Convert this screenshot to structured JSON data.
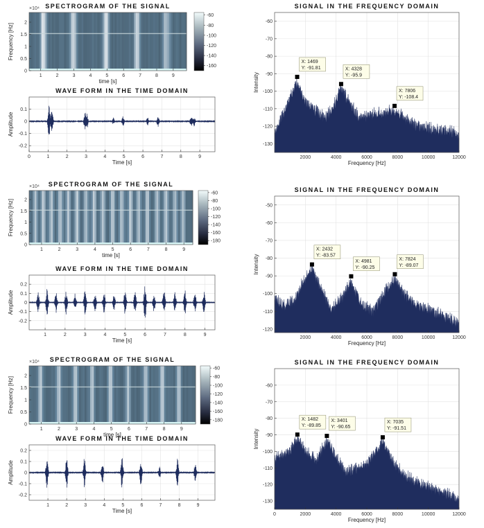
{
  "colors": {
    "fill": "#1f2d5e",
    "axis": "#333333",
    "grid": "#e2e2e2",
    "marker": "#000000",
    "tipBg": "#fdfde8"
  },
  "chart_data": [
    {
      "type": "heatmap",
      "title": "SPECTROGRAM OF THE SIGNAL",
      "xlabel": "time [s]",
      "ylabel": "Frequency [Hz]",
      "exponent": "×10⁴",
      "xlim": [
        0.3,
        9.8
      ],
      "xticks": [
        1,
        2,
        3,
        4,
        5,
        6,
        7,
        8,
        9
      ],
      "ylim": [
        0,
        2.4
      ],
      "yticks": [
        0,
        0.5,
        1,
        1.5,
        2
      ],
      "colorbar": {
        "ticks": [
          -60,
          -80,
          -100,
          -120,
          -140,
          -160
        ],
        "range": [
          -170,
          -55
        ]
      },
      "bursts": [
        1.1,
        1.25,
        2.9,
        3.05,
        4.9,
        5.0,
        6.75,
        6.9,
        8.5,
        8.7
      ],
      "burst_strength": [
        0.9,
        0.6,
        0.8,
        0.6,
        0.9,
        0.6,
        0.8,
        0.6,
        0.7,
        0.5
      ]
    },
    {
      "type": "line",
      "title": "WAVE FORM IN THE TIME DOMAIN",
      "xlabel": "Time [s]",
      "ylabel": "Amplitude",
      "xlim": [
        0,
        9.8
      ],
      "xticks": [
        0,
        1,
        2,
        3,
        4,
        5,
        6,
        7,
        8,
        9
      ],
      "ylim": [
        -0.25,
        0.2
      ],
      "yticks": [
        -0.2,
        -0.1,
        0,
        0.1
      ],
      "bursts": [
        1.05,
        1.2,
        2.95,
        3.05,
        4.45,
        4.95,
        6.25,
        6.8,
        8.55,
        8.7
      ],
      "burst_amp": [
        0.15,
        0.1,
        0.08,
        0.06,
        0.03,
        0.04,
        0.03,
        0.05,
        0.05,
        0.04
      ]
    },
    {
      "type": "area",
      "title": "SIGNAL IN THE FREQUENCY DOMAIN",
      "xlabel": "Frequency [Hz]",
      "ylabel": "Intensity",
      "xlim": [
        0,
        12000
      ],
      "xticks": [
        2000,
        4000,
        6000,
        8000,
        10000,
        12000
      ],
      "ylim": [
        -135,
        -55
      ],
      "yticks": [
        -60,
        -70,
        -80,
        -90,
        -100,
        -110,
        -120,
        -130
      ],
      "envelope": {
        "x": [
          0,
          400,
          900,
          1469,
          1900,
          2600,
          3300,
          3800,
          4328,
          4900,
          5600,
          6200,
          7000,
          7806,
          8600,
          9400,
          10200,
          11000,
          12000
        ],
        "y": [
          -122,
          -113,
          -104,
          -91.81,
          -102,
          -108,
          -113,
          -107,
          -95.9,
          -105,
          -113,
          -111,
          -110,
          -108.4,
          -114,
          -118,
          -119,
          -120,
          -122
        ]
      },
      "annotations": [
        {
          "x": 1469,
          "y": -91.81,
          "xtext": "X: 1469",
          "ytext": "Y: -91.81"
        },
        {
          "x": 4328,
          "y": -95.9,
          "xtext": "X: 4328",
          "ytext": "Y: -95.9"
        },
        {
          "x": 7806,
          "y": -108.4,
          "xtext": "X: 7806",
          "ytext": "Y: -108.4"
        }
      ]
    },
    {
      "type": "heatmap",
      "title": "SPECTROGRAM OF THE SIGNAL",
      "xlabel": "time [s]",
      "ylabel": "Frequency [Hz]",
      "exponent": "×10⁴",
      "xlim": [
        0.3,
        9.5
      ],
      "xticks": [
        1,
        2,
        3,
        4,
        5,
        6,
        7,
        8,
        9
      ],
      "ylim": [
        0,
        2.4
      ],
      "yticks": [
        0,
        0.5,
        1,
        1.5,
        2
      ],
      "colorbar": {
        "ticks": [
          -60,
          -80,
          -100,
          -120,
          -140,
          -160,
          -180
        ],
        "range": [
          -190,
          -55
        ]
      },
      "bursts": [
        0.65,
        1.1,
        1.55,
        2.05,
        2.5,
        3.0,
        3.5,
        3.95,
        4.45,
        5.0,
        5.5,
        6.0,
        6.45,
        6.95,
        7.5,
        8.0,
        8.5,
        8.95
      ],
      "burst_strength": [
        0.8,
        0.9,
        0.8,
        0.85,
        0.8,
        0.9,
        0.8,
        0.85,
        0.8,
        0.9,
        0.8,
        0.85,
        0.8,
        0.9,
        0.8,
        0.85,
        0.8,
        0.8
      ]
    },
    {
      "type": "line",
      "title": "WAVE FORM IN THE TIME DOMAIN",
      "xlabel": "Time [s]",
      "ylabel": "Amplitude",
      "xlim": [
        0.2,
        9.5
      ],
      "xticks": [
        1,
        2,
        3,
        4,
        5,
        6,
        7,
        8,
        9
      ],
      "ylim": [
        -0.3,
        0.3
      ],
      "yticks": [
        -0.2,
        -0.1,
        0,
        0.1,
        0.2
      ],
      "bursts": [
        0.65,
        1.1,
        1.55,
        2.05,
        2.5,
        3.0,
        3.5,
        3.95,
        4.45,
        5.0,
        5.5,
        6.0,
        6.45,
        6.95,
        7.5,
        8.0,
        8.5,
        8.95
      ],
      "burst_amp": [
        0.12,
        0.15,
        0.11,
        0.13,
        0.1,
        0.14,
        0.1,
        0.12,
        0.09,
        0.14,
        0.12,
        0.2,
        0.1,
        0.13,
        0.12,
        0.14,
        0.11,
        0.12
      ]
    },
    {
      "type": "area",
      "title": "SIGNAL IN THE FREQUENCY DOMAIN",
      "xlabel": "Frequency [Hz]",
      "ylabel": "Intensity",
      "xlim": [
        0,
        12000
      ],
      "xticks": [
        2000,
        4000,
        6000,
        8000,
        10000,
        12000
      ],
      "ylim": [
        -122,
        -45
      ],
      "yticks": [
        -50,
        -60,
        -70,
        -80,
        -90,
        -100,
        -110,
        -120
      ],
      "envelope": {
        "x": [
          0,
          600,
          1300,
          1900,
          2432,
          3000,
          3700,
          4400,
          4981,
          5600,
          6400,
          7200,
          7824,
          8500,
          9300,
          10200,
          11000,
          12000
        ],
        "y": [
          -100,
          -104,
          -101,
          -90,
          -83.57,
          -95,
          -106,
          -100,
          -90.25,
          -103,
          -108,
          -96,
          -89.07,
          -99,
          -104,
          -107,
          -110,
          -115
        ]
      },
      "annotations": [
        {
          "x": 2432,
          "y": -83.57,
          "xtext": "X: 2432",
          "ytext": "Y: -83.57"
        },
        {
          "x": 4981,
          "y": -90.25,
          "xtext": "X: 4981",
          "ytext": "Y: -90.25"
        },
        {
          "x": 7824,
          "y": -89.07,
          "xtext": "X: 7824",
          "ytext": "Y: -89.07"
        }
      ]
    },
    {
      "type": "heatmap",
      "title": "SPECTROGRAM OF THE SIGNAL",
      "xlabel": "time [s]",
      "ylabel": "Frequency [Hz]",
      "exponent": "×10⁴",
      "xlim": [
        0.3,
        9.8
      ],
      "xticks": [
        1,
        2,
        3,
        4,
        5,
        6,
        7,
        8,
        9
      ],
      "ylim": [
        0,
        2.4
      ],
      "yticks": [
        0,
        0.5,
        1,
        1.5,
        2
      ],
      "colorbar": {
        "ticks": [
          -60,
          -80,
          -100,
          -120,
          -140,
          -160,
          -180
        ],
        "range": [
          -190,
          -55
        ]
      },
      "bursts": [
        0.95,
        2.0,
        2.95,
        3.9,
        4.95,
        5.95,
        6.95,
        7.9,
        8.85
      ],
      "burst_strength": [
        0.85,
        0.9,
        0.85,
        0.85,
        0.9,
        0.85,
        0.85,
        0.9,
        0.85
      ]
    },
    {
      "type": "line",
      "title": "WAVE FORM IN THE TIME DOMAIN",
      "xlabel": "Time [s]",
      "ylabel": "Amplitude",
      "xlim": [
        0,
        9.9
      ],
      "xticks": [
        1,
        2,
        3,
        4,
        5,
        6,
        7,
        8,
        9
      ],
      "ylim": [
        -0.25,
        0.25
      ],
      "yticks": [
        -0.2,
        -0.1,
        0,
        0.1,
        0.2
      ],
      "bursts": [
        0.95,
        2.0,
        2.95,
        3.9,
        4.95,
        5.95,
        6.95,
        7.9,
        8.85
      ],
      "burst_amp": [
        0.15,
        0.14,
        0.14,
        0.12,
        0.15,
        0.14,
        0.05,
        0.13,
        0.1
      ]
    },
    {
      "type": "area",
      "title": "SIGNAL IN THE FREQUENCY DOMAIN",
      "xlabel": "Frequency [Hz]",
      "ylabel": "Intensity",
      "xlim": [
        0,
        12000
      ],
      "xticks": [
        0,
        2000,
        4000,
        6000,
        8000,
        10000,
        12000
      ],
      "ylim": [
        -135,
        -50
      ],
      "yticks": [
        -60,
        -70,
        -80,
        -90,
        -100,
        -110,
        -120,
        -130
      ],
      "envelope": {
        "x": [
          0,
          500,
          1000,
          1482,
          2000,
          2700,
          3401,
          4000,
          4600,
          5300,
          6100,
          7035,
          7700,
          8500,
          9400,
          10300,
          11200,
          12000
        ],
        "y": [
          -102,
          -100,
          -97,
          -89.85,
          -97,
          -103,
          -90.65,
          -101,
          -110,
          -108,
          -104,
          -91.51,
          -104,
          -112,
          -117,
          -120,
          -123,
          -127
        ]
      },
      "annotations": [
        {
          "x": 1482,
          "y": -89.85,
          "xtext": "X: 1482",
          "ytext": "Y: -89.85"
        },
        {
          "x": 3401,
          "y": -90.65,
          "xtext": "X: 3401",
          "ytext": "Y: -90.65"
        },
        {
          "x": 7035,
          "y": -91.51,
          "xtext": "X: 7035",
          "ytext": "Y: -91.51"
        }
      ]
    }
  ]
}
